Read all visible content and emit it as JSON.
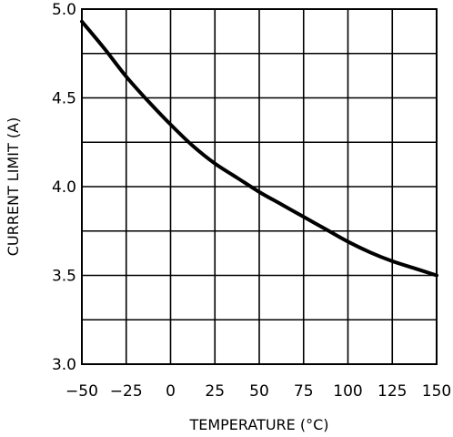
{
  "chart_data": {
    "type": "line",
    "title": "",
    "xlabel": "TEMPERATURE (°C)",
    "ylabel": "CURRENT LIMIT (A)",
    "xlim": [
      -50,
      150
    ],
    "ylim": [
      3.0,
      5.0
    ],
    "x_ticks": [
      -50,
      -25,
      0,
      25,
      50,
      75,
      100,
      125,
      150
    ],
    "x_tick_labels": [
      "−50",
      "−25",
      "0",
      "25",
      "50",
      "75",
      "100",
      "125",
      "150"
    ],
    "y_ticks": [
      3.0,
      3.5,
      4.0,
      4.5,
      5.0
    ],
    "y_tick_labels": [
      "3.0",
      "3.5",
      "4.0",
      "4.5",
      "5.0"
    ],
    "grid": true,
    "grid_y_step": 0.25,
    "legend": "none",
    "series": [
      {
        "x": [
          -50,
          -37.5,
          -25,
          -12.5,
          0,
          12.5,
          25,
          37.5,
          50,
          62.5,
          75,
          87.5,
          100,
          112.5,
          125,
          137.5,
          150
        ],
        "y": [
          4.93,
          4.78,
          4.62,
          4.48,
          4.35,
          4.23,
          4.13,
          4.05,
          3.97,
          3.9,
          3.83,
          3.76,
          3.69,
          3.63,
          3.58,
          3.54,
          3.5
        ]
      }
    ]
  }
}
